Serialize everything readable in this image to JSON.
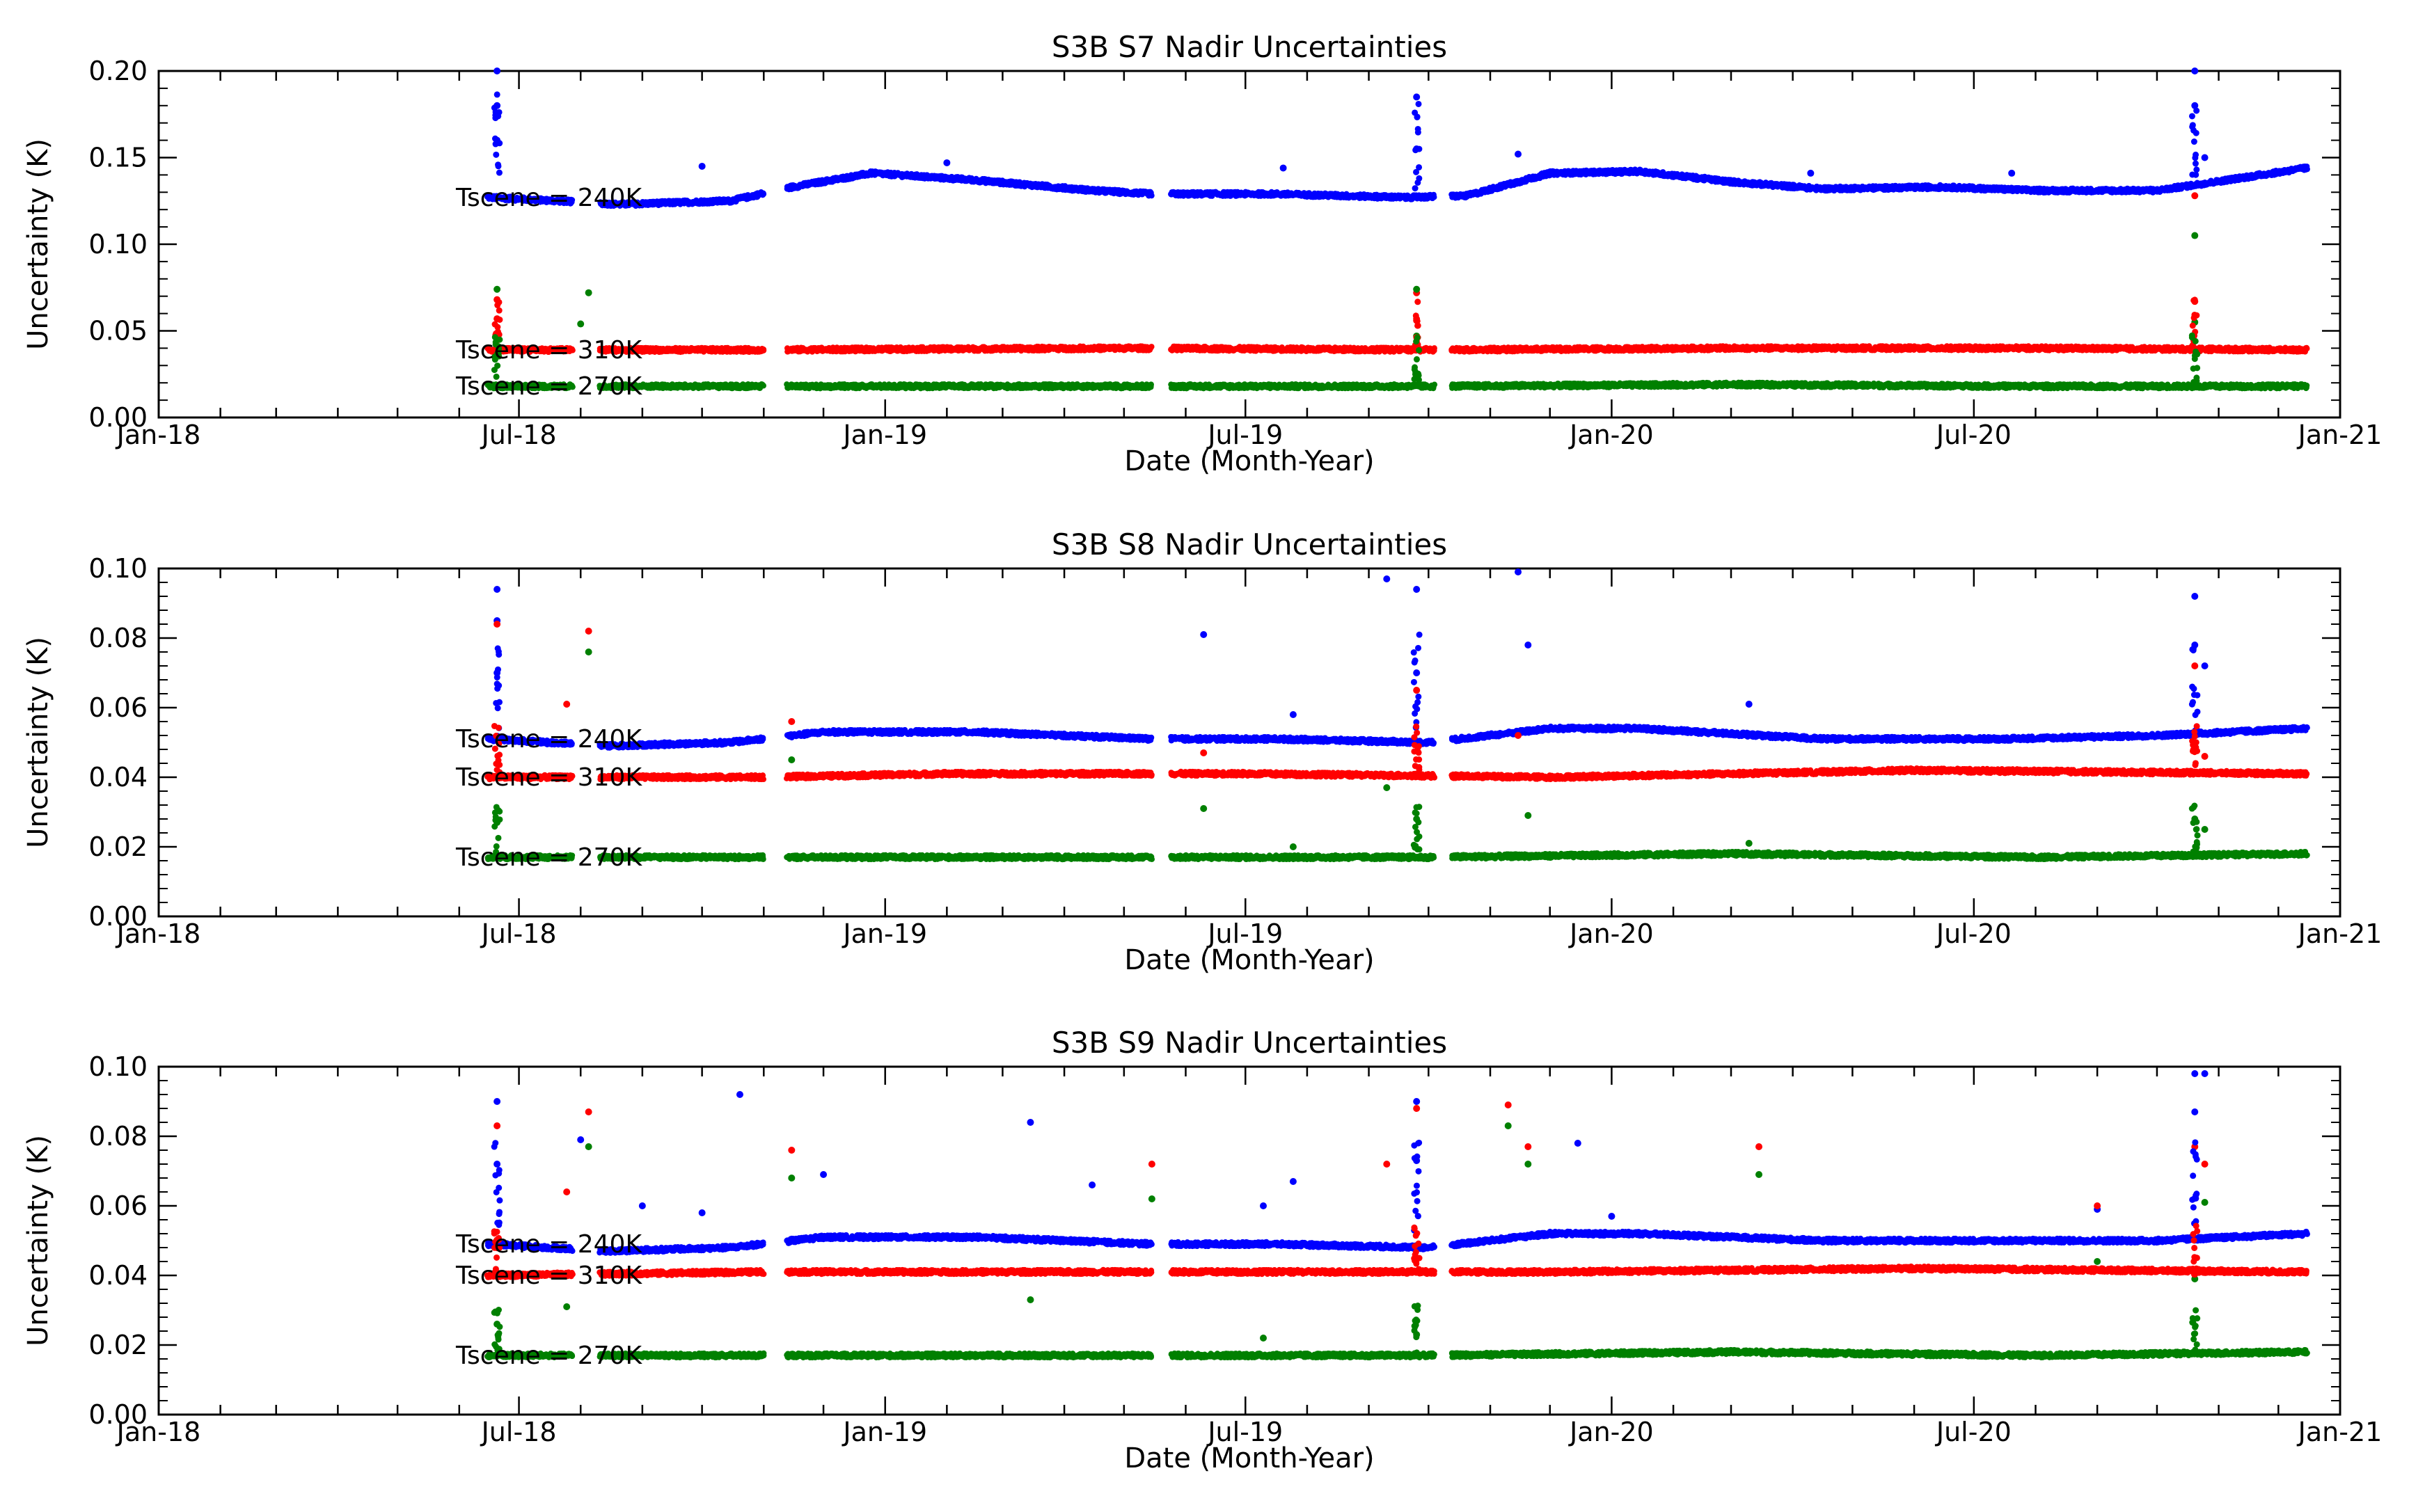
{
  "chart_data": [
    {
      "type": "scatter",
      "title": "S3B S7 Nadir Uncertainties",
      "xlabel": "Date (Month-Year)",
      "ylabel": "Uncertainty (K)",
      "xlim": [
        "2018-01-01",
        "2021-01-01"
      ],
      "ylim": [
        0,
        0.2
      ],
      "x_tick_labels": [
        "Jan-18",
        "Jul-18",
        "Jan-19",
        "Jul-19",
        "Jan-20",
        "Jul-20",
        "Jan-21"
      ],
      "y_tick_labels": [
        "0.00",
        "0.05",
        "0.10",
        "0.15",
        "0.20"
      ],
      "y_ticks": [
        0,
        0.05,
        0.1,
        0.15,
        0.2
      ],
      "annotations": [
        "Tscene = 240K",
        "Tscene = 310K",
        "Tscene = 270K"
      ],
      "series": [
        {
          "name": "Tscene = 240K",
          "color": "#0000ff",
          "baseline": [
            [
              "2018-06-15",
              0.127
            ],
            [
              "2018-07-20",
              0.125
            ],
            [
              "2018-08-20",
              0.123
            ],
            [
              "2018-10-15",
              0.125
            ],
            [
              "2018-11-15",
              0.133
            ],
            [
              "2018-12-25",
              0.141
            ],
            [
              "2019-02-15",
              0.137
            ],
            [
              "2019-04-15",
              0.131
            ],
            [
              "2019-05-15",
              0.129
            ],
            [
              "2019-07-15",
              0.129
            ],
            [
              "2019-09-20",
              0.127
            ],
            [
              "2019-10-20",
              0.128
            ],
            [
              "2019-12-01",
              0.141
            ],
            [
              "2020-01-15",
              0.142
            ],
            [
              "2020-03-01",
              0.136
            ],
            [
              "2020-04-15",
              0.132
            ],
            [
              "2020-06-15",
              0.133
            ],
            [
              "2020-08-01",
              0.131
            ],
            [
              "2020-10-01",
              0.131
            ],
            [
              "2020-12-15",
              0.144
            ]
          ],
          "outliers": [
            [
              "2018-06-20",
              0.2
            ],
            [
              "2018-06-20",
              0.18
            ],
            [
              "2018-06-20",
              0.16
            ],
            [
              "2018-10-01",
              0.145
            ],
            [
              "2019-02-01",
              0.147
            ],
            [
              "2019-07-20",
              0.144
            ],
            [
              "2019-09-25",
              0.185
            ],
            [
              "2019-09-25",
              0.155
            ],
            [
              "2019-11-15",
              0.152
            ],
            [
              "2020-04-10",
              0.141
            ],
            [
              "2020-07-20",
              0.141
            ],
            [
              "2020-10-20",
              0.2
            ],
            [
              "2020-10-20",
              0.18
            ],
            [
              "2020-10-25",
              0.15
            ]
          ]
        },
        {
          "name": "Tscene = 310K",
          "color": "#ff0000",
          "baseline": [
            [
              "2018-06-15",
              0.039
            ],
            [
              "2018-11-01",
              0.039
            ],
            [
              "2019-05-01",
              0.04
            ],
            [
              "2019-10-01",
              0.039
            ],
            [
              "2020-03-01",
              0.04
            ],
            [
              "2020-08-01",
              0.04
            ],
            [
              "2020-12-15",
              0.039
            ]
          ],
          "outliers": [
            [
              "2018-06-20",
              0.068
            ],
            [
              "2018-06-20",
              0.057
            ],
            [
              "2019-09-25",
              0.072
            ],
            [
              "2019-09-25",
              0.056
            ],
            [
              "2020-10-20",
              0.067
            ],
            [
              "2020-10-20",
              0.128
            ]
          ]
        },
        {
          "name": "Tscene = 270K",
          "color": "#008000",
          "baseline": [
            [
              "2018-06-15",
              0.018
            ],
            [
              "2018-11-01",
              0.018
            ],
            [
              "2019-05-01",
              0.018
            ],
            [
              "2019-10-01",
              0.018
            ],
            [
              "2020-03-01",
              0.019
            ],
            [
              "2020-08-01",
              0.018
            ],
            [
              "2020-12-15",
              0.018
            ]
          ],
          "outliers": [
            [
              "2018-06-20",
              0.074
            ],
            [
              "2018-08-01",
              0.054
            ],
            [
              "2018-08-05",
              0.072
            ],
            [
              "2019-09-25",
              0.074
            ],
            [
              "2019-09-25",
              0.047
            ],
            [
              "2020-10-20",
              0.105
            ],
            [
              "2020-10-20",
              0.055
            ]
          ]
        }
      ]
    },
    {
      "type": "scatter",
      "title": "S3B S8 Nadir Uncertainties",
      "xlabel": "Date (Month-Year)",
      "ylabel": "Uncertainty (K)",
      "xlim": [
        "2018-01-01",
        "2021-01-01"
      ],
      "ylim": [
        0,
        0.1
      ],
      "x_tick_labels": [
        "Jan-18",
        "Jul-18",
        "Jan-19",
        "Jul-19",
        "Jan-20",
        "Jul-20",
        "Jan-21"
      ],
      "y_tick_labels": [
        "0.00",
        "0.02",
        "0.04",
        "0.06",
        "0.08",
        "0.10"
      ],
      "y_ticks": [
        0,
        0.02,
        0.04,
        0.06,
        0.08,
        0.1
      ],
      "annotations": [
        "Tscene = 240K",
        "Tscene = 310K",
        "Tscene = 270K"
      ],
      "series": [
        {
          "name": "Tscene = 240K",
          "color": "#0000ff",
          "baseline": [
            [
              "2018-06-15",
              0.051
            ],
            [
              "2018-08-15",
              0.049
            ],
            [
              "2018-10-15",
              0.05
            ],
            [
              "2018-12-01",
              0.053
            ],
            [
              "2019-02-15",
              0.053
            ],
            [
              "2019-05-15",
              0.051
            ],
            [
              "2019-07-15",
              0.051
            ],
            [
              "2019-10-01",
              0.05
            ],
            [
              "2019-12-01",
              0.054
            ],
            [
              "2020-01-15",
              0.054
            ],
            [
              "2020-04-15",
              0.051
            ],
            [
              "2020-07-15",
              0.051
            ],
            [
              "2020-10-01",
              0.052
            ],
            [
              "2020-12-15",
              0.054
            ]
          ],
          "outliers": [
            [
              "2018-06-20",
              0.094
            ],
            [
              "2018-06-20",
              0.085
            ],
            [
              "2018-06-20",
              0.07
            ],
            [
              "2019-06-10",
              0.081
            ],
            [
              "2019-07-25",
              0.058
            ],
            [
              "2019-09-10",
              0.097
            ],
            [
              "2019-09-25",
              0.094
            ],
            [
              "2019-09-25",
              0.07
            ],
            [
              "2019-11-15",
              0.099
            ],
            [
              "2019-11-20",
              0.078
            ],
            [
              "2020-03-10",
              0.061
            ],
            [
              "2020-10-20",
              0.092
            ],
            [
              "2020-10-20",
              0.078
            ],
            [
              "2020-10-25",
              0.072
            ]
          ]
        },
        {
          "name": "Tscene = 310K",
          "color": "#ff0000",
          "baseline": [
            [
              "2018-06-15",
              0.04
            ],
            [
              "2018-11-01",
              0.04
            ],
            [
              "2019-02-01",
              0.041
            ],
            [
              "2019-07-01",
              0.041
            ],
            [
              "2019-12-01",
              0.04
            ],
            [
              "2020-06-01",
              0.042
            ],
            [
              "2020-12-15",
              0.041
            ]
          ],
          "outliers": [
            [
              "2018-06-20",
              0.084
            ],
            [
              "2018-07-25",
              0.061
            ],
            [
              "2018-08-05",
              0.082
            ],
            [
              "2018-11-15",
              0.056
            ],
            [
              "2019-06-10",
              0.047
            ],
            [
              "2019-09-25",
              0.065
            ],
            [
              "2019-11-15",
              0.052
            ],
            [
              "2020-10-20",
              0.072
            ],
            [
              "2020-10-25",
              0.046
            ]
          ]
        },
        {
          "name": "Tscene = 270K",
          "color": "#008000",
          "baseline": [
            [
              "2018-06-15",
              0.017
            ],
            [
              "2018-11-01",
              0.017
            ],
            [
              "2019-05-01",
              0.017
            ],
            [
              "2019-10-01",
              0.017
            ],
            [
              "2020-03-01",
              0.018
            ],
            [
              "2020-08-01",
              0.017
            ],
            [
              "2020-12-15",
              0.018
            ]
          ],
          "outliers": [
            [
              "2018-06-20",
              0.027
            ],
            [
              "2018-08-05",
              0.076
            ],
            [
              "2018-11-15",
              0.045
            ],
            [
              "2019-06-10",
              0.031
            ],
            [
              "2019-07-25",
              0.02
            ],
            [
              "2019-09-10",
              0.037
            ],
            [
              "2019-09-25",
              0.028
            ],
            [
              "2019-11-20",
              0.029
            ],
            [
              "2020-03-10",
              0.021
            ],
            [
              "2020-10-20",
              0.028
            ],
            [
              "2020-10-25",
              0.025
            ]
          ]
        }
      ]
    },
    {
      "type": "scatter",
      "title": "S3B S9 Nadir Uncertainties",
      "xlabel": "Date (Month-Year)",
      "ylabel": "Uncertainty (K)",
      "xlim": [
        "2018-01-01",
        "2021-01-01"
      ],
      "ylim": [
        0,
        0.1
      ],
      "x_tick_labels": [
        "Jan-18",
        "Jul-18",
        "Jan-19",
        "Jul-19",
        "Jan-20",
        "Jul-20",
        "Jan-21"
      ],
      "y_tick_labels": [
        "0.00",
        "0.02",
        "0.04",
        "0.06",
        "0.08",
        "0.10"
      ],
      "y_ticks": [
        0,
        0.02,
        0.04,
        0.06,
        0.08,
        0.1
      ],
      "annotations": [
        "Tscene = 240K",
        "Tscene = 310K",
        "Tscene = 270K"
      ],
      "series": [
        {
          "name": "Tscene = 240K",
          "color": "#0000ff",
          "baseline": [
            [
              "2018-06-15",
              0.049
            ],
            [
              "2018-08-15",
              0.047
            ],
            [
              "2018-10-15",
              0.048
            ],
            [
              "2018-12-01",
              0.051
            ],
            [
              "2019-02-15",
              0.051
            ],
            [
              "2019-05-15",
              0.049
            ],
            [
              "2019-07-15",
              0.049
            ],
            [
              "2019-10-01",
              0.048
            ],
            [
              "2019-12-01",
              0.052
            ],
            [
              "2020-01-15",
              0.052
            ],
            [
              "2020-04-15",
              0.05
            ],
            [
              "2020-07-15",
              0.05
            ],
            [
              "2020-10-01",
              0.05
            ],
            [
              "2020-12-15",
              0.052
            ]
          ],
          "outliers": [
            [
              "2018-06-20",
              0.09
            ],
            [
              "2018-06-20",
              0.072
            ],
            [
              "2018-08-01",
              0.079
            ],
            [
              "2018-09-01",
              0.06
            ],
            [
              "2018-10-01",
              0.058
            ],
            [
              "2018-10-20",
              0.092
            ],
            [
              "2018-12-01",
              0.069
            ],
            [
              "2019-03-15",
              0.084
            ],
            [
              "2019-04-15",
              0.066
            ],
            [
              "2019-07-10",
              0.06
            ],
            [
              "2019-07-25",
              0.067
            ],
            [
              "2019-09-25",
              0.09
            ],
            [
              "2019-09-25",
              0.073
            ],
            [
              "2019-12-15",
              0.078
            ],
            [
              "2020-01-01",
              0.057
            ],
            [
              "2020-09-01",
              0.059
            ],
            [
              "2020-10-20",
              0.098
            ],
            [
              "2020-10-25",
              0.098
            ],
            [
              "2020-10-20",
              0.087
            ]
          ]
        },
        {
          "name": "Tscene = 310K",
          "color": "#ff0000",
          "baseline": [
            [
              "2018-06-15",
              0.04
            ],
            [
              "2018-11-01",
              0.041
            ],
            [
              "2019-02-01",
              0.041
            ],
            [
              "2019-07-01",
              0.041
            ],
            [
              "2019-12-01",
              0.041
            ],
            [
              "2020-06-01",
              0.042
            ],
            [
              "2020-12-15",
              0.041
            ]
          ],
          "outliers": [
            [
              "2018-06-20",
              0.083
            ],
            [
              "2018-07-25",
              0.064
            ],
            [
              "2018-08-05",
              0.087
            ],
            [
              "2018-11-15",
              0.076
            ],
            [
              "2019-05-15",
              0.072
            ],
            [
              "2019-09-10",
              0.072
            ],
            [
              "2019-09-25",
              0.088
            ],
            [
              "2019-11-10",
              0.089
            ],
            [
              "2019-11-20",
              0.077
            ],
            [
              "2020-03-15",
              0.077
            ],
            [
              "2020-09-01",
              0.06
            ],
            [
              "2020-10-20",
              0.077
            ],
            [
              "2020-10-25",
              0.072
            ]
          ]
        },
        {
          "name": "Tscene = 270K",
          "color": "#008000",
          "baseline": [
            [
              "2018-06-15",
              0.017
            ],
            [
              "2018-11-01",
              0.017
            ],
            [
              "2019-05-01",
              0.017
            ],
            [
              "2019-10-01",
              0.017
            ],
            [
              "2020-03-01",
              0.018
            ],
            [
              "2020-08-01",
              0.017
            ],
            [
              "2020-12-15",
              0.018
            ]
          ],
          "outliers": [
            [
              "2018-06-20",
              0.026
            ],
            [
              "2018-07-25",
              0.031
            ],
            [
              "2018-08-05",
              0.077
            ],
            [
              "2018-11-15",
              0.068
            ],
            [
              "2019-03-15",
              0.033
            ],
            [
              "2019-05-15",
              0.062
            ],
            [
              "2019-07-10",
              0.022
            ],
            [
              "2019-09-25",
              0.023
            ],
            [
              "2019-11-10",
              0.083
            ],
            [
              "2019-11-20",
              0.072
            ],
            [
              "2020-03-15",
              0.069
            ],
            [
              "2020-09-01",
              0.044
            ],
            [
              "2020-10-20",
              0.039
            ],
            [
              "2020-10-25",
              0.061
            ]
          ]
        }
      ]
    }
  ]
}
